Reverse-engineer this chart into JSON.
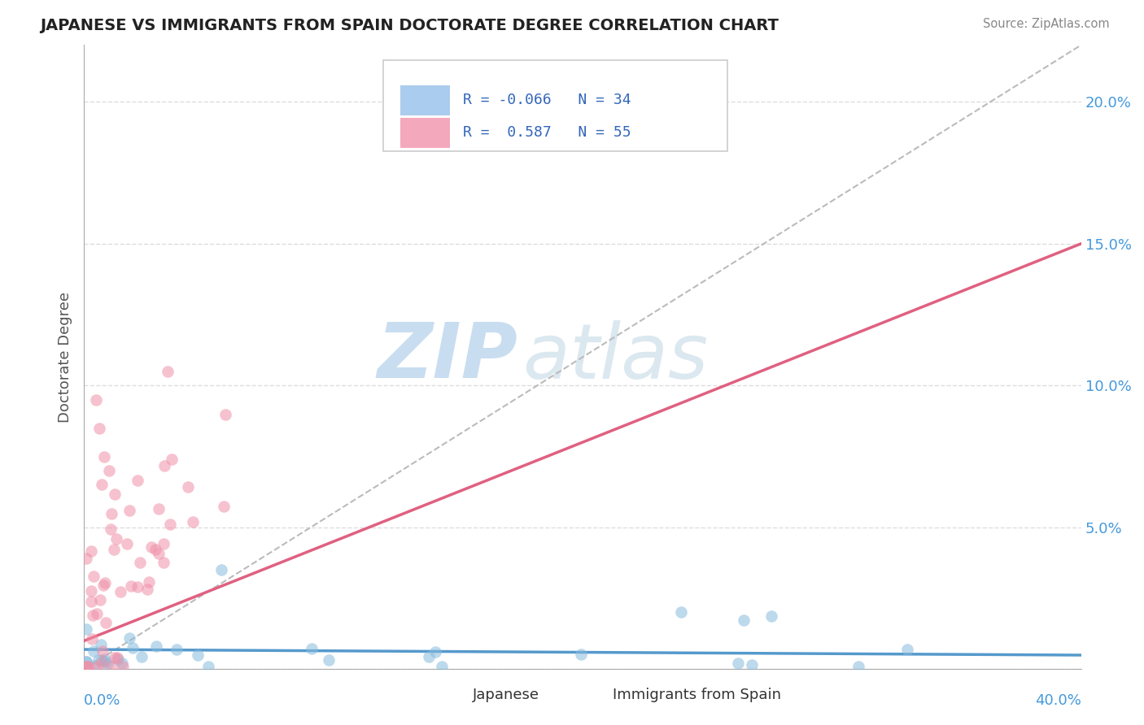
{
  "title": "JAPANESE VS IMMIGRANTS FROM SPAIN DOCTORATE DEGREE CORRELATION CHART",
  "source": "Source: ZipAtlas.com",
  "ylabel": "Doctorate Degree",
  "legend_label1": "Japanese",
  "legend_label2": "Immigrants from Spain",
  "watermark_zip": "ZIP",
  "watermark_atlas": "atlas",
  "R_japanese": -0.066,
  "N_japanese": 34,
  "R_spain": 0.587,
  "N_spain": 55,
  "japanese_color": "#88bbdd",
  "spain_color": "#f090a8",
  "japanese_line_color": "#5599cc",
  "spain_line_color": "#e06080",
  "scatter_alpha": 0.55,
  "scatter_size": 110,
  "xlim": [
    0.0,
    0.4
  ],
  "ylim": [
    0.0,
    0.22
  ],
  "yticks": [
    0.0,
    0.05,
    0.1,
    0.15,
    0.2
  ],
  "ytick_labels": [
    "",
    "5.0%",
    "10.0%",
    "15.0%",
    "20.0%"
  ],
  "diag_line_color": "#bbbbbb",
  "grid_color": "#dddddd",
  "title_color": "#222222",
  "source_color": "#888888",
  "ylabel_color": "#555555",
  "tick_color": "#4499dd",
  "legend_border_color": "#cccccc",
  "legend_jap_color": "#aaccee",
  "legend_spain_color": "#f4a8bc",
  "legend_text_color": "#3366bb"
}
